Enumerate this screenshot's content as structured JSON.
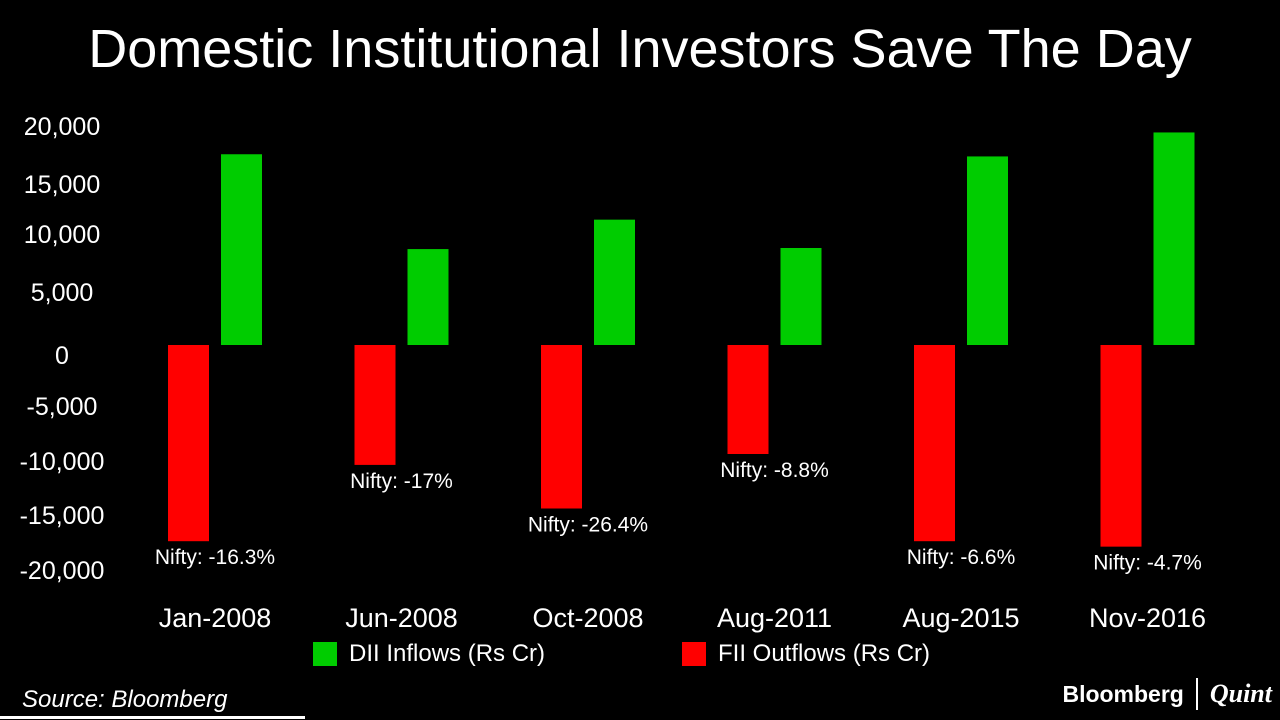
{
  "chart_data": {
    "type": "bar",
    "title": "Domestic Institutional Investors Save The Day",
    "categories": [
      "Jan-2008",
      "Jun-2008",
      "Oct-2008",
      "Aug-2011",
      "Aug-2015",
      "Nov-2016"
    ],
    "series": [
      {
        "name": "DII Inflows (Rs Cr)",
        "color": "#00cc00",
        "values": [
          17500,
          8800,
          11500,
          8900,
          17300,
          19500
        ]
      },
      {
        "name": "FII Outflows (Rs Cr)",
        "color": "#ff0000",
        "values": [
          -18000,
          -11000,
          -15000,
          -10000,
          -18000,
          -18500
        ]
      }
    ],
    "annotations": [
      "Nifty: -16.3%",
      "Nifty: -17%",
      "Nifty: -26.4%",
      "Nifty: -8.8%",
      "Nifty: -6.6%",
      "Nifty: -4.7%"
    ],
    "yticks": [
      "20,000",
      "15,000",
      "10,000",
      "5,000",
      "0",
      "-5,000",
      "-10,000",
      "-15,000",
      "-20,000"
    ],
    "ylim": [
      -20000,
      20000
    ],
    "grid": false,
    "legend_position": "bottom",
    "background": "#000000"
  },
  "source": "Source: Bloomberg",
  "brand": {
    "left": "Bloomberg",
    "right": "Quint"
  }
}
